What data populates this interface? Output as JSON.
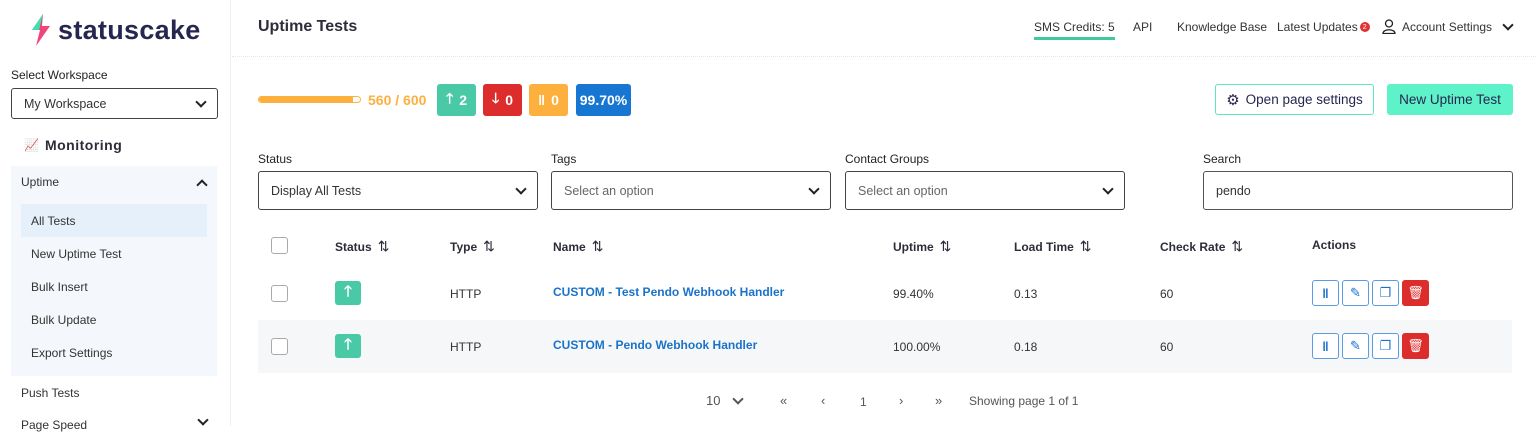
{
  "brand": {
    "name": "statuscake"
  },
  "sidebar": {
    "workspace_label": "Select Workspace",
    "workspace_value": "My Workspace",
    "section": "Monitoring",
    "group": "Uptime",
    "items": [
      {
        "label": "All Tests"
      },
      {
        "label": "New Uptime Test"
      },
      {
        "label": "Bulk Insert"
      },
      {
        "label": "Bulk Update"
      },
      {
        "label": "Export Settings"
      }
    ],
    "after": [
      {
        "label": "Push Tests"
      },
      {
        "label": "Page Speed"
      }
    ]
  },
  "header": {
    "title": "Uptime Tests",
    "nav": {
      "sms": "SMS Credits: 5",
      "api": "API",
      "kb": "Knowledge Base",
      "updates": "Latest Updates",
      "updates_count": "2",
      "account": "Account Settings"
    }
  },
  "summary": {
    "usage_text": "560 / 600",
    "usage_fraction": 0.933,
    "up": "2",
    "down": "0",
    "paused": "0",
    "uptime": "99.70%",
    "colors": {
      "up": "#4ac9a6",
      "down": "#dd2c2c",
      "paused": "#fdb03d",
      "uptime": "#1676d2"
    }
  },
  "actions": {
    "settings": "Open page settings",
    "new_test": "New Uptime Test"
  },
  "filters": {
    "status_label": "Status",
    "status_value": "Display All Tests",
    "tags_label": "Tags",
    "tags_placeholder": "Select an option",
    "contacts_label": "Contact Groups",
    "contacts_placeholder": "Select an option",
    "search_label": "Search",
    "search_value": "pendo"
  },
  "table": {
    "headers": {
      "status": "Status",
      "type": "Type",
      "name": "Name",
      "uptime": "Uptime",
      "load": "Load Time",
      "rate": "Check Rate",
      "actions": "Actions"
    },
    "rows": [
      {
        "type": "HTTP",
        "name": "CUSTOM - Test Pendo Webhook Handler",
        "uptime": "99.40%",
        "load": "0.13",
        "rate": "60",
        "status": "up"
      },
      {
        "type": "HTTP",
        "name": "CUSTOM - Pendo Webhook Handler",
        "uptime": "100.00%",
        "load": "0.18",
        "rate": "60",
        "status": "up"
      }
    ]
  },
  "pagination": {
    "per_page": "10",
    "page": "1",
    "info": "Showing page 1 of 1"
  }
}
